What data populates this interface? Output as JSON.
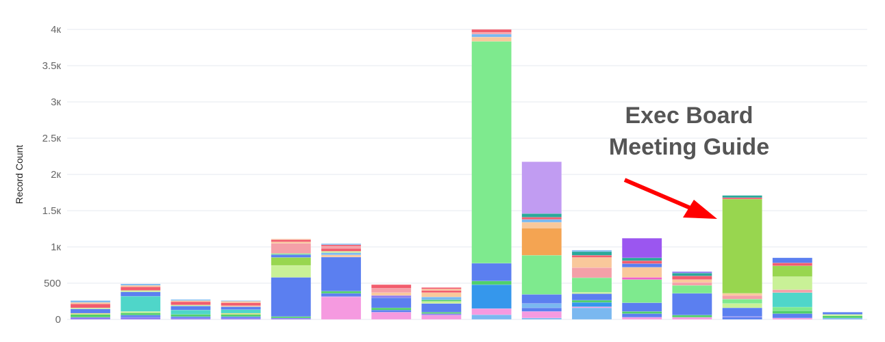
{
  "chart_data": {
    "type": "bar",
    "stacked": true,
    "ylabel": "Record Count",
    "ylim": [
      0,
      4000
    ],
    "yticks": [
      {
        "value": 0,
        "label": "0"
      },
      {
        "value": 500,
        "label": "500"
      },
      {
        "value": 1000,
        "label": "1к"
      },
      {
        "value": 1500,
        "label": "1.5к"
      },
      {
        "value": 2000,
        "label": "2к"
      },
      {
        "value": 2500,
        "label": "2.5к"
      },
      {
        "value": 3000,
        "label": "3к"
      },
      {
        "value": 3500,
        "label": "3.5к"
      },
      {
        "value": 4000,
        "label": "4к"
      }
    ],
    "grid": true,
    "colors": {
      "blue": "#5b7ff0",
      "mint": "#7eea8e",
      "purple": "#c19cf2",
      "orange": "#f4a452",
      "teal": "#4fd6c9",
      "red": "#f25d6e",
      "peach": "#f9c89b",
      "salmon": "#f4a0a8",
      "lime": "#c9f197",
      "limegreen": "#98d64f",
      "pink": "#f59ae0",
      "lightblue": "#7ab8f0",
      "green": "#4fcf6a",
      "violet": "#9b56f0",
      "skyblue": "#3597ec",
      "yellow": "#e8e070",
      "magenta": "#f060c8",
      "indigo": "#8e7cf0",
      "darkteal": "#2aa89a"
    },
    "bars": [
      [
        [
          30,
          "indigo"
        ],
        [
          40,
          "green"
        ],
        [
          15,
          "yellow"
        ],
        [
          60,
          "blue"
        ],
        [
          15,
          "lime"
        ],
        [
          55,
          "red"
        ],
        [
          20,
          "peach"
        ],
        [
          25,
          "lightblue"
        ]
      ],
      [
        [
          30,
          "indigo"
        ],
        [
          30,
          "blue"
        ],
        [
          30,
          "green"
        ],
        [
          20,
          "lime"
        ],
        [
          210,
          "teal"
        ],
        [
          60,
          "blue"
        ],
        [
          20,
          "lime"
        ],
        [
          50,
          "red"
        ],
        [
          20,
          "peach"
        ],
        [
          20,
          "lightblue"
        ]
      ],
      [
        [
          20,
          "indigo"
        ],
        [
          20,
          "blue"
        ],
        [
          30,
          "green"
        ],
        [
          60,
          "teal"
        ],
        [
          55,
          "blue"
        ],
        [
          15,
          "lime"
        ],
        [
          45,
          "red"
        ],
        [
          15,
          "peach"
        ],
        [
          15,
          "lightblue"
        ]
      ],
      [
        [
          20,
          "indigo"
        ],
        [
          20,
          "blue"
        ],
        [
          30,
          "green"
        ],
        [
          15,
          "yellow"
        ],
        [
          50,
          "teal"
        ],
        [
          40,
          "blue"
        ],
        [
          15,
          "peach"
        ],
        [
          40,
          "red"
        ],
        [
          20,
          "peach"
        ],
        [
          10,
          "lightblue"
        ]
      ],
      [
        [
          20,
          "indigo"
        ],
        [
          20,
          "green"
        ],
        [
          540,
          "blue"
        ],
        [
          165,
          "lime"
        ],
        [
          110,
          "limegreen"
        ],
        [
          40,
          "blue"
        ],
        [
          15,
          "mint"
        ],
        [
          140,
          "salmon"
        ],
        [
          20,
          "peach"
        ],
        [
          30,
          "red"
        ],
        [
          10,
          "peach"
        ]
      ],
      [
        [
          310,
          "pink"
        ],
        [
          10,
          "indigo"
        ],
        [
          40,
          "blue"
        ],
        [
          30,
          "green"
        ],
        [
          470,
          "blue"
        ],
        [
          30,
          "peach"
        ],
        [
          30,
          "lightblue"
        ],
        [
          20,
          "lime"
        ],
        [
          40,
          "red"
        ],
        [
          30,
          "salmon"
        ],
        [
          20,
          "red"
        ],
        [
          15,
          "lightblue"
        ]
      ],
      [
        [
          100,
          "pink"
        ],
        [
          30,
          "blue"
        ],
        [
          30,
          "green"
        ],
        [
          140,
          "blue"
        ],
        [
          30,
          "indigo"
        ],
        [
          40,
          "peach"
        ],
        [
          60,
          "salmon"
        ],
        [
          50,
          "red"
        ]
      ],
      [
        [
          60,
          "pink"
        ],
        [
          20,
          "indigo"
        ],
        [
          20,
          "green"
        ],
        [
          120,
          "blue"
        ],
        [
          30,
          "lime"
        ],
        [
          20,
          "green"
        ],
        [
          40,
          "lightblue"
        ],
        [
          60,
          "peach"
        ],
        [
          30,
          "red"
        ],
        [
          20,
          "peach"
        ],
        [
          20,
          "red"
        ]
      ],
      [
        [
          65,
          "lightblue"
        ],
        [
          85,
          "pink"
        ],
        [
          330,
          "skyblue"
        ],
        [
          50,
          "green"
        ],
        [
          245,
          "blue"
        ],
        [
          3060,
          "mint"
        ],
        [
          60,
          "peach"
        ],
        [
          40,
          "lightblue"
        ],
        [
          25,
          "salmon"
        ],
        [
          40,
          "red"
        ]
      ],
      [
        [
          20,
          "lightblue"
        ],
        [
          90,
          "pink"
        ],
        [
          50,
          "blue"
        ],
        [
          60,
          "lightblue"
        ],
        [
          125,
          "blue"
        ],
        [
          540,
          "mint"
        ],
        [
          375,
          "orange"
        ],
        [
          80,
          "peach"
        ],
        [
          40,
          "lightblue"
        ],
        [
          30,
          "red"
        ],
        [
          50,
          "darkteal"
        ],
        [
          715,
          "purple"
        ]
      ],
      [
        [
          160,
          "lightblue"
        ],
        [
          15,
          "pink"
        ],
        [
          60,
          "skyblue"
        ],
        [
          30,
          "green"
        ],
        [
          90,
          "blue"
        ],
        [
          20,
          "lime"
        ],
        [
          200,
          "mint"
        ],
        [
          140,
          "salmon"
        ],
        [
          140,
          "peach"
        ],
        [
          30,
          "red"
        ],
        [
          50,
          "darkteal"
        ],
        [
          20,
          "lightblue"
        ]
      ],
      [
        [
          30,
          "pink"
        ],
        [
          50,
          "blue"
        ],
        [
          30,
          "green"
        ],
        [
          120,
          "blue"
        ],
        [
          320,
          "mint"
        ],
        [
          30,
          "magenta"
        ],
        [
          140,
          "peach"
        ],
        [
          50,
          "blue"
        ],
        [
          40,
          "red"
        ],
        [
          40,
          "darkteal"
        ],
        [
          270,
          "violet"
        ]
      ],
      [
        [
          30,
          "pink"
        ],
        [
          30,
          "green"
        ],
        [
          300,
          "blue"
        ],
        [
          110,
          "mint"
        ],
        [
          40,
          "salmon"
        ],
        [
          40,
          "peach"
        ],
        [
          50,
          "red"
        ],
        [
          40,
          "darkteal"
        ],
        [
          20,
          "indigo"
        ]
      ],
      [
        [
          30,
          "blue"
        ],
        [
          10,
          "indigo"
        ],
        [
          120,
          "blue"
        ],
        [
          60,
          "lime"
        ],
        [
          60,
          "mint"
        ],
        [
          50,
          "salmon"
        ],
        [
          30,
          "peach"
        ],
        [
          1300,
          "limegreen"
        ],
        [
          20,
          "red"
        ],
        [
          30,
          "darkteal"
        ]
      ],
      [
        [
          20,
          "pink"
        ],
        [
          60,
          "blue"
        ],
        [
          40,
          "green"
        ],
        [
          50,
          "mint"
        ],
        [
          200,
          "teal"
        ],
        [
          40,
          "salmon"
        ],
        [
          180,
          "lime"
        ],
        [
          150,
          "limegreen"
        ],
        [
          40,
          "red"
        ],
        [
          70,
          "blue"
        ]
      ],
      [
        [
          20,
          "lightblue"
        ],
        [
          30,
          "green"
        ],
        [
          20,
          "lime"
        ],
        [
          30,
          "blue"
        ]
      ]
    ],
    "annotations": [
      {
        "text_lines": [
          "Exec Board",
          "Meeting Guide"
        ],
        "arrow_color": "#ff0000",
        "points_to_bar": 14
      }
    ]
  }
}
